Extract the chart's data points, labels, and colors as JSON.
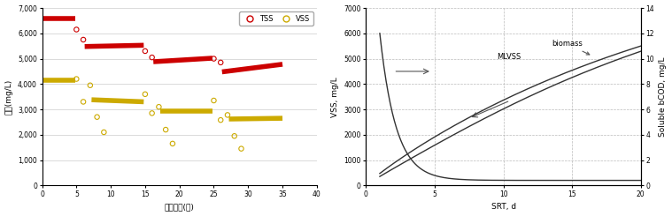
{
  "chart1": {
    "xlabel": "운전기간(일)",
    "ylabel": "농도(mg/L)",
    "xlim": [
      0,
      40
    ],
    "ylim": [
      0,
      7000
    ],
    "yticks": [
      0,
      1000,
      2000,
      3000,
      4000,
      5000,
      6000,
      7000
    ],
    "ytick_labels": [
      "0",
      "1,000",
      "2,000",
      "3,000",
      "4,000",
      "5,000",
      "6,000",
      "7,000"
    ],
    "xticks": [
      0,
      5,
      10,
      15,
      20,
      25,
      30,
      35,
      40
    ],
    "tss_scatter": [
      [
        5,
        6150
      ],
      [
        6,
        5750
      ],
      [
        15,
        5300
      ],
      [
        16,
        5050
      ],
      [
        25,
        5000
      ],
      [
        26,
        4850
      ]
    ],
    "vss_scatter": [
      [
        5,
        4200
      ],
      [
        6,
        3300
      ],
      [
        7,
        3950
      ],
      [
        8,
        2700
      ],
      [
        9,
        2100
      ],
      [
        15,
        3600
      ],
      [
        16,
        2850
      ],
      [
        17,
        3100
      ],
      [
        18,
        2200
      ],
      [
        19,
        1650
      ],
      [
        25,
        3350
      ],
      [
        26,
        2580
      ],
      [
        27,
        2780
      ],
      [
        28,
        1950
      ],
      [
        29,
        1450
      ]
    ],
    "tss_lines": [
      {
        "x": [
          0.2,
          4.8
        ],
        "y": [
          6600,
          6600
        ]
      },
      {
        "x": [
          6.2,
          14.8
        ],
        "y": [
          5480,
          5530
        ]
      },
      {
        "x": [
          16.2,
          24.8
        ],
        "y": [
          4880,
          5020
        ]
      },
      {
        "x": [
          26.2,
          35.0
        ],
        "y": [
          4480,
          4780
        ]
      }
    ],
    "vss_lines": [
      {
        "x": [
          0.2,
          4.8
        ],
        "y": [
          4150,
          4150
        ]
      },
      {
        "x": [
          7.2,
          14.8
        ],
        "y": [
          3380,
          3300
        ]
      },
      {
        "x": [
          17.2,
          24.8
        ],
        "y": [
          2950,
          2950
        ]
      },
      {
        "x": [
          27.2,
          35.0
        ],
        "y": [
          2620,
          2650
        ]
      }
    ],
    "tss_color": "#cc0000",
    "vss_color": "#ccaa00",
    "legend_tss": "TSS",
    "legend_vss": "VSS"
  },
  "chart2": {
    "xlabel": "SRT, d",
    "ylabel_left": "VSS, mg/L",
    "ylabel_right": "Soluble bCOD, mg/L",
    "xlim": [
      0,
      20
    ],
    "ylim_left": [
      0,
      7000
    ],
    "ylim_right": [
      0,
      14
    ],
    "xticks": [
      0,
      5,
      10,
      15,
      20
    ],
    "yticks_left": [
      0,
      1000,
      2000,
      3000,
      4000,
      5000,
      6000,
      7000
    ],
    "ytick_labels_left": [
      "0",
      "1000",
      "2000",
      "3000",
      "4000",
      "5000",
      "6000",
      "7000"
    ],
    "yticks_right": [
      0,
      2,
      4,
      6,
      8,
      10,
      12,
      14
    ],
    "label_biomass": "biomass",
    "label_mlvss": "MLVSS",
    "line_color": "#333333",
    "arrow_color": "#555555",
    "grid_color": "#aaaaaa"
  }
}
